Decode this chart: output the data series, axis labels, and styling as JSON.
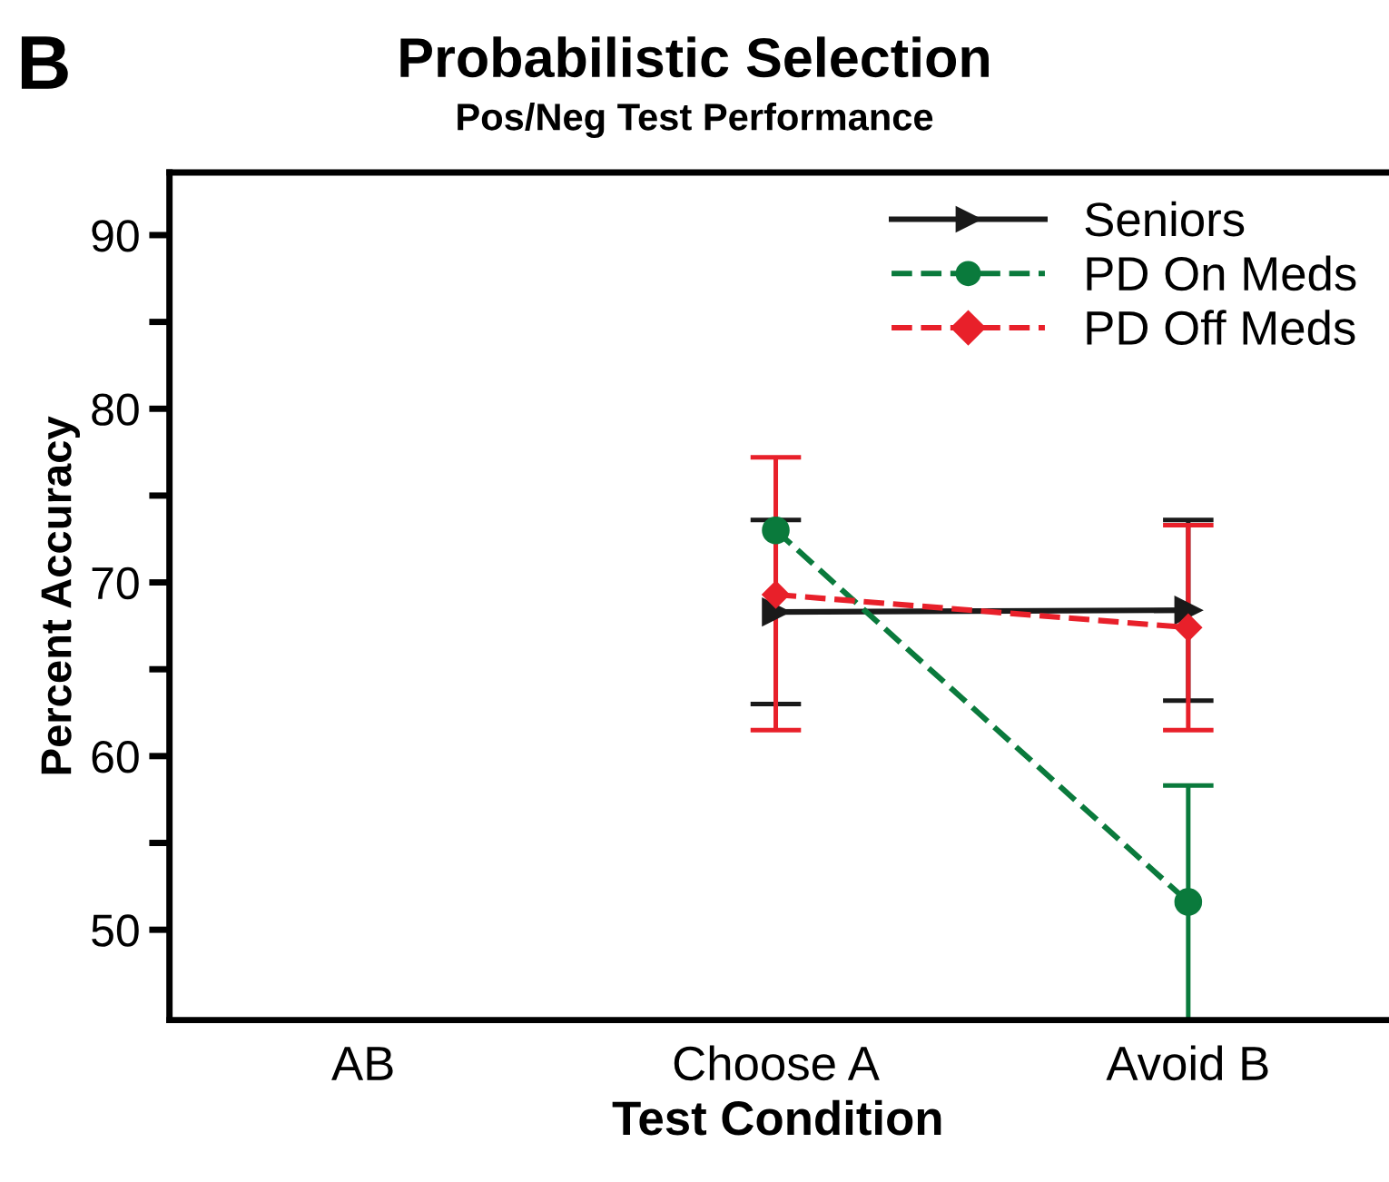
{
  "chart_data": {
    "type": "line",
    "title": "Probabilistic Selection",
    "subtitle": "Pos/Neg Test Performance",
    "xlabel": "Test Condition",
    "ylabel": "Percent Accuracy",
    "annotations": [
      "B"
    ],
    "categories": [
      "AB",
      "Choose A",
      "Avoid B"
    ],
    "series": [
      {
        "name": "Seniors",
        "color": "#1a1a1a",
        "marker": "triangle",
        "line_style": "solid",
        "values": [
          null,
          68.3,
          68.4
        ],
        "errors": [
          null,
          5.3,
          5.2
        ]
      },
      {
        "name": "PD On Meds",
        "color": "#0a7a3c",
        "marker": "circle",
        "line_style": "dashed",
        "values": [
          null,
          73.0,
          51.6
        ],
        "errors": [
          null,
          null,
          [
            44.8,
            58.3
          ]
        ]
      },
      {
        "name": "PD Off Meds",
        "color": "#e8202a",
        "marker": "diamond",
        "line_style": "dashed",
        "values": [
          null,
          69.3,
          67.4
        ],
        "errors": [
          null,
          [
            61.5,
            77.2
          ],
          [
            61.5,
            73.3
          ]
        ]
      }
    ],
    "ylim": [
      44.8,
      93.6
    ],
    "yticks": [
      50,
      {
        "value": 55,
        "label": null
      },
      60,
      {
        "value": 65,
        "label": null
      },
      70,
      {
        "value": 75,
        "label": null
      },
      80,
      {
        "value": 85,
        "label": null
      },
      90
    ],
    "grid": false,
    "legend": "top right"
  }
}
